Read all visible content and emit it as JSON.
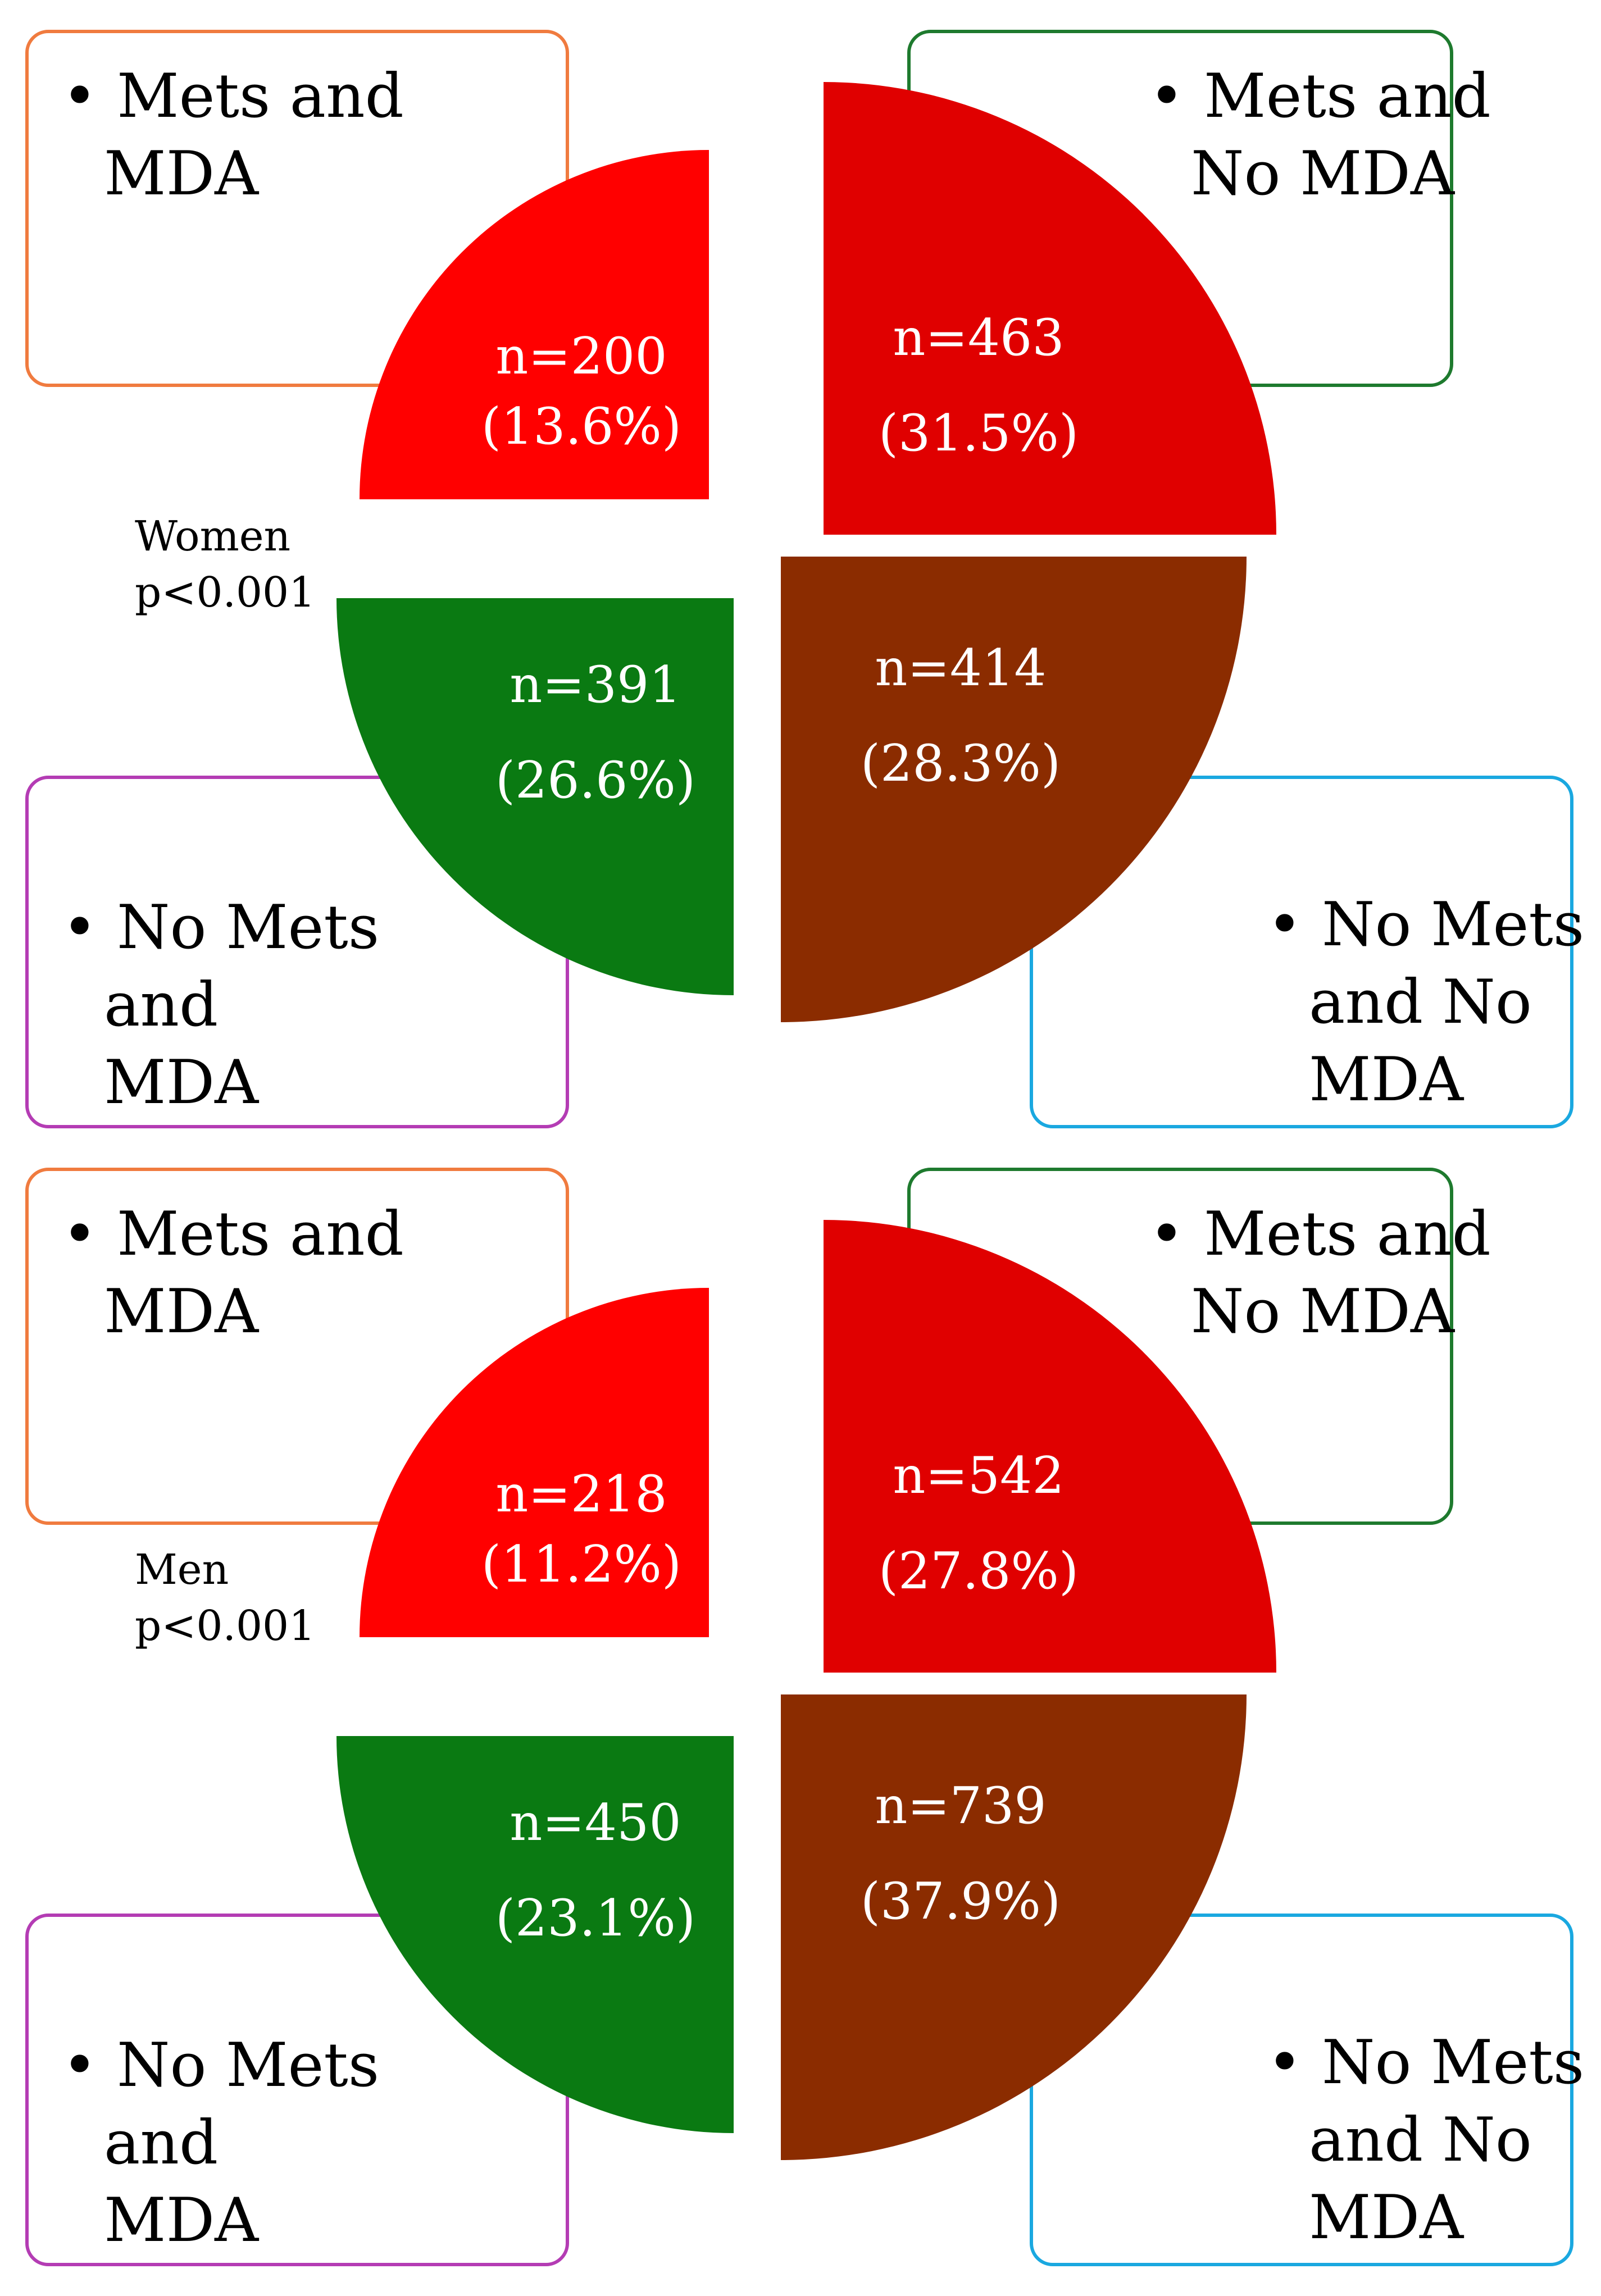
{
  "chart_data": [
    {
      "type": "pie",
      "title": "Women",
      "subtitle": "p<0.001",
      "slices": [
        {
          "key": "mets_mda",
          "label": "Mets and MDA",
          "n": "n=200",
          "pct": "(13.6%)",
          "value": 13.6,
          "color": "#ff0000",
          "box_color": "#f07b3f"
        },
        {
          "key": "mets_no_mda",
          "label": "Mets and No MDA",
          "n": "n=463",
          "pct": "(31.5%)",
          "value": 31.5,
          "color": "#e00000",
          "box_color": "#1e7a2e"
        },
        {
          "key": "no_mets_mda",
          "label": "No Mets and MDA",
          "n": "n=391",
          "pct": "(26.6%)",
          "value": 26.6,
          "color": "#0a7a12",
          "box_color": "#b43cb4"
        },
        {
          "key": "no_mets_no_mda",
          "label": "No Mets and No MDA",
          "n": "n=414",
          "pct": "(28.3%)",
          "value": 28.3,
          "color": "#8b2c00",
          "box_color": "#1aa8e0"
        }
      ]
    },
    {
      "type": "pie",
      "title": "Men",
      "subtitle": "p<0.001",
      "slices": [
        {
          "key": "mets_mda",
          "label": "Mets and MDA",
          "n": "n=218",
          "pct": "(11.2%)",
          "value": 11.2,
          "color": "#ff0000",
          "box_color": "#f07b3f"
        },
        {
          "key": "mets_no_mda",
          "label": "Mets and No MDA",
          "n": "n=542",
          "pct": "(27.8%)",
          "value": 27.8,
          "color": "#e00000",
          "box_color": "#1e7a2e"
        },
        {
          "key": "no_mets_mda",
          "label": "No Mets and MDA",
          "n": "n=450",
          "pct": "(23.1%)",
          "value": 23.1,
          "color": "#0a7a12",
          "box_color": "#b43cb4"
        },
        {
          "key": "no_mets_no_mda",
          "label": "No Mets and No MDA",
          "n": "n=739",
          "pct": "(37.9%)",
          "value": 37.9,
          "color": "#8b2c00",
          "box_color": "#1aa8e0"
        }
      ]
    }
  ],
  "box_labels": {
    "mets_mda": [
      "Mets and",
      "MDA"
    ],
    "mets_no_mda": [
      "Mets and",
      "No MDA"
    ],
    "no_mets_mda": [
      "No Mets",
      "and",
      "MDA"
    ],
    "no_mets_no_mda": [
      "No Mets",
      "and No",
      "MDA"
    ]
  },
  "bullet": "•"
}
